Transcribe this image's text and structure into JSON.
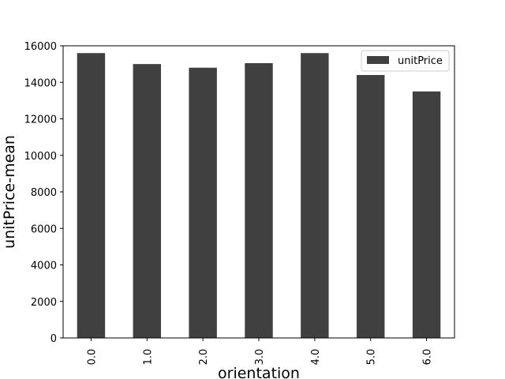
{
  "chart_data": {
    "type": "bar",
    "categories": [
      "0.0",
      "1.0",
      "2.0",
      "3.0",
      "4.0",
      "5.0",
      "6.0"
    ],
    "series": [
      {
        "name": "unitPrice",
        "values": [
          15600,
          15000,
          14800,
          15050,
          15600,
          14400,
          13500
        ]
      }
    ],
    "xlabel": "orientation",
    "ylabel": "unitPrice-mean",
    "ylim": [
      0,
      16000
    ],
    "yticks": [
      0,
      2000,
      4000,
      6000,
      8000,
      10000,
      12000,
      14000,
      16000
    ],
    "legend_position": "top-right",
    "grid": false,
    "bar_color": "#404040"
  }
}
